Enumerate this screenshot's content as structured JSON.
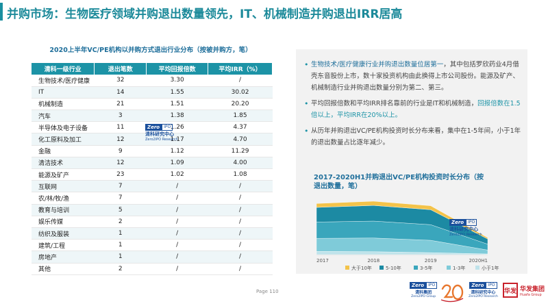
{
  "slide_title": "并购市场：生物医疗领域并购退出数量领先，IT、机械制造并购退出IRR居高",
  "table_title": "2020上半年VC/PE机构以并购方式退出行业分布（按被并购方，笔）",
  "table": {
    "headers": [
      "清科一级行业",
      "退出笔数",
      "平均回报倍数",
      "平均IRR（%）"
    ],
    "rows": [
      [
        "生物技术/医疗健康",
        "32",
        "3.30",
        "/"
      ],
      [
        "IT",
        "14",
        "1.55",
        "30.02"
      ],
      [
        "机械制造",
        "21",
        "1.51",
        "20.20"
      ],
      [
        "汽车",
        "3",
        "1.38",
        "1.85"
      ],
      [
        "半导体及电子设备",
        "11",
        "1.26",
        "4.37"
      ],
      [
        "化工原料及加工",
        "12",
        "1.17",
        "4.70"
      ],
      [
        "金融",
        "9",
        "1.12",
        "11.29"
      ],
      [
        "清洁技术",
        "12",
        "1.09",
        "4.00"
      ],
      [
        "能源及矿产",
        "23",
        "1.02",
        "1.08"
      ],
      [
        "互联网",
        "7",
        "/",
        "/"
      ],
      [
        "农/林/牧/渔",
        "7",
        "/",
        "/"
      ],
      [
        "教育与培训",
        "5",
        "/",
        "/"
      ],
      [
        "娱乐传媒",
        "2",
        "/",
        "/"
      ],
      [
        "纺织及服装",
        "1",
        "/",
        "/"
      ],
      [
        "建筑/工程",
        "1",
        "/",
        "/"
      ],
      [
        "房地产",
        "1",
        "/",
        "/"
      ],
      [
        "其他",
        "2",
        "/",
        "/"
      ]
    ]
  },
  "bullets": {
    "b1_a": "生物技术/医疗健康行业并购退出数量位居第一",
    "b1_b": "，其中包括罗欣药业4月借壳东音股份上市，数十家投资机构由此换得上市公司股份。能源及矿产、机械制造行业并购退出数量分别为第二、第三。",
    "b2_a": "平均回报倍数和平均IRR排名靠前的行业是IT和机械制造，",
    "b2_b": "回报倍数在1.5倍以上，平均IRR在20%以上。",
    "b3": "从历年并购退出VC/PE机构投资时长分布来看，集中在1-5年间，小于1年的退出数量占比逐年减少。"
  },
  "watermark": {
    "zero": "Zero",
    "ipo": "IPO",
    "cn": "清科研究中心",
    "en": "Zero2IPO Research"
  },
  "chart_data": {
    "type": "area",
    "title": "2017-2020H1并购退出VC/PE机构投资时长分布（按退出数量，笔）",
    "categories": [
      "2017",
      "2018",
      "2019",
      "2020H1"
    ],
    "series": [
      {
        "name": "小于1年",
        "values": [
          10,
          9,
          6,
          2
        ],
        "color": "#bfe3ea"
      },
      {
        "name": "1-3年",
        "values": [
          40,
          42,
          38,
          12
        ],
        "color": "#7fcbd9"
      },
      {
        "name": "3-5年",
        "values": [
          50,
          52,
          48,
          18
        ],
        "color": "#3aa6bc"
      },
      {
        "name": "5-10年",
        "values": [
          45,
          48,
          46,
          16
        ],
        "color": "#1c8aa3"
      },
      {
        "name": "大于10年",
        "values": [
          12,
          13,
          12,
          4
        ],
        "color": "#f3c34a"
      }
    ],
    "legend_order": [
      "大于10年",
      "5-10年",
      "3-5年",
      "1-3年",
      "小于1年"
    ],
    "legend": "bottom"
  },
  "footer": {
    "page_label": "Page",
    "page_number": "110",
    "logo1_cn": "清科集团",
    "logo1_en": "Zero2IPO Group",
    "logo2_cn": "清科研究中心",
    "logo2_en": "Zero2IPO Research",
    "huafa_box": "华发",
    "huafa_name": "华发集团",
    "huafa_en": "Huafa Group"
  }
}
